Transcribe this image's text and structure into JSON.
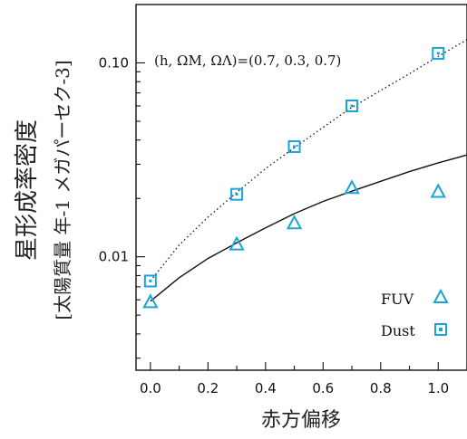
{
  "colors": {
    "axis": "#111111",
    "marker": "#1ba3dc",
    "line": "#111111"
  },
  "chart_data": {
    "type": "scatter",
    "x_scale": "linear",
    "y_scale": "log",
    "xlim": [
      -0.05,
      1.1
    ],
    "ylim": [
      0.0026,
      0.2
    ],
    "xticks": [
      0.0,
      0.2,
      0.4,
      0.6,
      0.8,
      1.0
    ],
    "xtick_labels": [
      "0.0",
      "0.2",
      "0.4",
      "0.6",
      "0.8",
      "1.0"
    ],
    "yticks": [
      0.01,
      0.1
    ],
    "ytick_labels": [
      "0.01",
      "0.10"
    ],
    "xlabel": "赤方偏移",
    "ylabel": "星形成率密度",
    "ylabel_sub": "[太陽質量 年-1 メガパーセク-3]",
    "annotation": "(h, ΩM, ΩΛ)=(0.7, 0.3, 0.7)",
    "series": [
      {
        "name": "FUV",
        "marker": "triangle",
        "x": [
          0.0,
          0.3,
          0.5,
          0.7,
          1.0
        ],
        "y": [
          0.0058,
          0.0115,
          0.0148,
          0.0225,
          0.0215
        ]
      },
      {
        "name": "Dust",
        "marker": "square",
        "x": [
          0.0,
          0.3,
          0.5,
          0.7,
          1.0
        ],
        "y": [
          0.0075,
          0.021,
          0.037,
          0.06,
          0.112
        ]
      }
    ],
    "curves": [
      {
        "style": "solid",
        "x": [
          0.0,
          0.1,
          0.2,
          0.3,
          0.4,
          0.5,
          0.6,
          0.7,
          0.8,
          0.9,
          1.0,
          1.1
        ],
        "y": [
          0.0059,
          0.0078,
          0.0098,
          0.0118,
          0.0141,
          0.0167,
          0.0193,
          0.0218,
          0.0245,
          0.0275,
          0.0305,
          0.0335
        ]
      },
      {
        "style": "dotted",
        "x": [
          0.0,
          0.1,
          0.2,
          0.3,
          0.4,
          0.5,
          0.6,
          0.7,
          0.8,
          0.9,
          1.0,
          1.1
        ],
        "y": [
          0.0075,
          0.0115,
          0.016,
          0.0215,
          0.0285,
          0.0365,
          0.0465,
          0.059,
          0.072,
          0.088,
          0.108,
          0.132
        ]
      }
    ],
    "legend": {
      "placement": "lower-right",
      "entries": [
        "FUV",
        "Dust"
      ]
    }
  }
}
